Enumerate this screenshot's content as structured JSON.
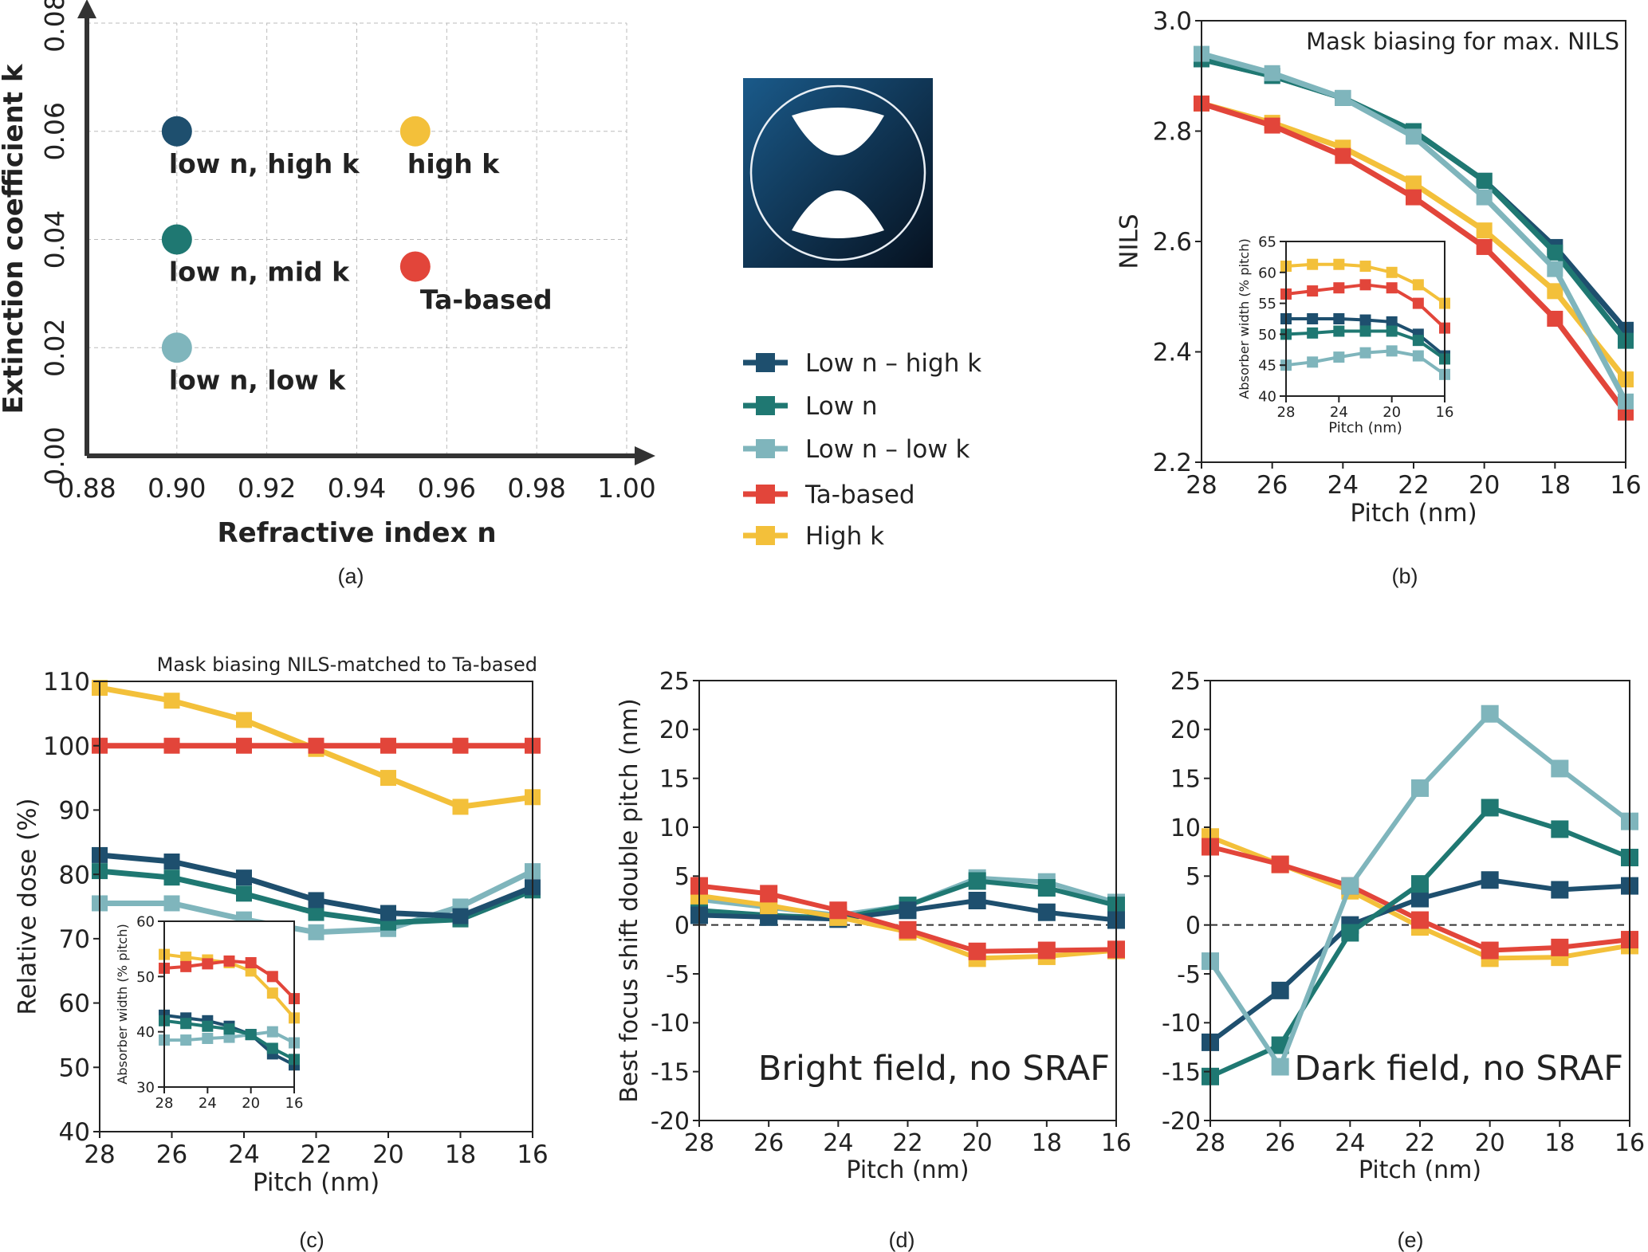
{
  "colors": {
    "low_n_high_k": "#1e4f6e",
    "low_n": "#1f7872",
    "low_n_low_k": "#7fb5bc",
    "ta_based": "#e2453a",
    "high_k": "#f3c03a"
  },
  "legend": [
    {
      "key": "low_n_high_k",
      "label": "Low n – high k"
    },
    {
      "key": "low_n",
      "label": "Low n"
    },
    {
      "key": "low_n_low_k",
      "label": "Low n – low k"
    },
    {
      "key": "ta_based",
      "label": "Ta-based"
    },
    {
      "key": "high_k",
      "label": "High k"
    }
  ],
  "mask_icon": "mask-pattern-two-lens-openings",
  "chart_data": [
    {
      "id": "a",
      "panel_label": "(a)",
      "type": "scatter",
      "xlabel": "Refractive index n",
      "ylabel": "Extinction coefficient k",
      "xlim": [
        0.88,
        1.0
      ],
      "ylim": [
        0,
        0.08
      ],
      "xticks": [
        "0.88",
        "0.90",
        "0.92",
        "0.94",
        "0.96",
        "0.98",
        "1.00"
      ],
      "yticks": [
        "0.00",
        "0.02",
        "0.04",
        "0.06",
        "0.08"
      ],
      "grid": true,
      "points": [
        {
          "key": "low_n_high_k",
          "label": "low n, high k",
          "x": 0.9,
          "y": 0.06
        },
        {
          "key": "high_k",
          "label": "high k",
          "x": 0.953,
          "y": 0.06
        },
        {
          "key": "low_n",
          "label": "low n, mid k",
          "x": 0.9,
          "y": 0.04
        },
        {
          "key": "ta_based",
          "label": "Ta-based",
          "x": 0.953,
          "y": 0.035
        },
        {
          "key": "low_n_low_k",
          "label": "low n, low k",
          "x": 0.9,
          "y": 0.02
        }
      ]
    },
    {
      "id": "b",
      "panel_label": "(b)",
      "type": "line",
      "title": "Mask biasing for max. NILS",
      "xlabel": "Pitch (nm)",
      "ylabel": "NILS",
      "x": [
        28,
        26,
        24,
        22,
        20,
        18,
        16
      ],
      "xlim": [
        28,
        16
      ],
      "ylim": [
        2.2,
        3.0
      ],
      "yticks": [
        "2.2",
        "2.4",
        "2.6",
        "2.8",
        "3.0"
      ],
      "xticks": [
        "28",
        "26",
        "24",
        "22",
        "20",
        "18",
        "16"
      ],
      "series": [
        {
          "key": "high_k",
          "values": [
            2.85,
            2.815,
            2.77,
            2.705,
            2.62,
            2.51,
            2.35
          ]
        },
        {
          "key": "ta_based",
          "values": [
            2.85,
            2.81,
            2.755,
            2.68,
            2.59,
            2.46,
            2.29
          ]
        },
        {
          "key": "low_n_high_k",
          "values": [
            2.93,
            2.9,
            2.86,
            2.8,
            2.71,
            2.59,
            2.44
          ]
        },
        {
          "key": "low_n",
          "values": [
            2.93,
            2.9,
            2.86,
            2.8,
            2.71,
            2.58,
            2.42
          ]
        },
        {
          "key": "low_n_low_k",
          "values": [
            2.94,
            2.905,
            2.86,
            2.79,
            2.68,
            2.55,
            2.31
          ]
        }
      ],
      "inset": {
        "xlabel": "Pitch (nm)",
        "ylabel": "Absorber width (% pitch)",
        "x": [
          28,
          26,
          24,
          22,
          20,
          18,
          16
        ],
        "xlim": [
          28,
          16
        ],
        "ylim": [
          40,
          65
        ],
        "yticks": [
          "40",
          "45",
          "50",
          "55",
          "60",
          "65"
        ],
        "xticks": [
          "28",
          "24",
          "20",
          "16"
        ],
        "series": [
          {
            "key": "high_k",
            "values": [
              61,
              61.3,
              61.3,
              61,
              60,
              58,
              55
            ]
          },
          {
            "key": "ta_based",
            "values": [
              56.5,
              57,
              57.5,
              58,
              57.5,
              55,
              51
            ]
          },
          {
            "key": "low_n_high_k",
            "values": [
              52.5,
              52.5,
              52.5,
              52.3,
              52,
              50,
              46.5
            ]
          },
          {
            "key": "low_n",
            "values": [
              50,
              50.2,
              50.5,
              50.5,
              50.5,
              49,
              46
            ]
          },
          {
            "key": "low_n_low_k",
            "values": [
              45,
              45.5,
              46.3,
              47,
              47.3,
              46.5,
              43.5
            ]
          }
        ]
      }
    },
    {
      "id": "c",
      "panel_label": "(c)",
      "type": "line",
      "title": "Mask biasing NILS-matched to Ta-based",
      "xlabel": "Pitch (nm)",
      "ylabel": "Relative dose (%)",
      "x": [
        28,
        26,
        24,
        22,
        20,
        18,
        16
      ],
      "xlim": [
        28,
        16
      ],
      "ylim": [
        40,
        110
      ],
      "yticks": [
        "40",
        "50",
        "60",
        "70",
        "80",
        "90",
        "100",
        "110"
      ],
      "xticks": [
        "28",
        "26",
        "24",
        "22",
        "20",
        "18",
        "16"
      ],
      "series": [
        {
          "key": "low_n_low_k",
          "values": [
            75.5,
            75.5,
            73,
            71,
            71.5,
            75,
            80.5
          ]
        },
        {
          "key": "low_n",
          "values": [
            80.5,
            79.5,
            77,
            74,
            72.5,
            73,
            77.5
          ]
        },
        {
          "key": "low_n_high_k",
          "values": [
            83,
            82,
            79.5,
            76,
            74,
            73.5,
            78
          ]
        },
        {
          "key": "high_k",
          "values": [
            109,
            107,
            104,
            99.5,
            95,
            90.5,
            92
          ]
        },
        {
          "key": "ta_based",
          "values": [
            100,
            100,
            100,
            100,
            100,
            100,
            100
          ]
        }
      ],
      "inset": {
        "xlabel": "",
        "ylabel": "Absorber width (% pitch)",
        "x": [
          28,
          26,
          24,
          22,
          20,
          18,
          16
        ],
        "xlim": [
          28,
          16
        ],
        "ylim": [
          30,
          60
        ],
        "yticks": [
          "30",
          "40",
          "50",
          "60"
        ],
        "xticks": [
          "28",
          "24",
          "20",
          "16"
        ],
        "series": [
          {
            "key": "high_k",
            "values": [
              54,
              53.5,
              53,
              52.5,
              51,
              47,
              42.5
            ]
          },
          {
            "key": "ta_based",
            "values": [
              51.5,
              51.8,
              52.3,
              52.8,
              52.5,
              50,
              46
            ]
          },
          {
            "key": "low_n_low_k",
            "values": [
              38.5,
              38.5,
              38.8,
              39,
              39.5,
              40,
              38
            ]
          },
          {
            "key": "low_n_high_k",
            "values": [
              43,
              42.5,
              42,
              41,
              39.5,
              36,
              34
            ]
          },
          {
            "key": "low_n",
            "values": [
              42,
              41.5,
              41,
              40.5,
              39.5,
              37,
              35
            ]
          }
        ]
      }
    },
    {
      "id": "d",
      "panel_label": "(d)",
      "type": "line",
      "annotation": "Bright field, no SRAF",
      "xlabel": "Pitch (nm)",
      "ylabel": "Best focus shift double pitch (nm)",
      "x": [
        28,
        26,
        24,
        22,
        20,
        18,
        16
      ],
      "xlim": [
        28,
        16
      ],
      "ylim": [
        -20,
        25
      ],
      "yticks": [
        "-20",
        "-15",
        "-10",
        "-5",
        "0",
        "5",
        "10",
        "15",
        "20",
        "25"
      ],
      "xticks": [
        "28",
        "26",
        "24",
        "22",
        "20",
        "18",
        "16"
      ],
      "zero_line": "dashed",
      "series": [
        {
          "key": "low_n_low_k",
          "values": [
            2.6,
            1.8,
            1,
            2,
            4.8,
            4.4,
            2.3
          ]
        },
        {
          "key": "low_n",
          "values": [
            1.5,
            1,
            0.7,
            2,
            4.5,
            3.8,
            2
          ]
        },
        {
          "key": "low_n_high_k",
          "values": [
            1,
            0.8,
            0.6,
            1.5,
            2.5,
            1.3,
            0.5
          ]
        },
        {
          "key": "high_k",
          "values": [
            3,
            2,
            0.8,
            -0.7,
            -3.4,
            -3.2,
            -2.6
          ]
        },
        {
          "key": "ta_based",
          "values": [
            4,
            3.2,
            1.5,
            -0.5,
            -2.7,
            -2.6,
            -2.5
          ]
        }
      ]
    },
    {
      "id": "e",
      "panel_label": "(e)",
      "type": "line",
      "annotation": "Dark field, no SRAF",
      "xlabel": "Pitch (nm)",
      "ylabel": "",
      "x": [
        28,
        26,
        24,
        22,
        20,
        18,
        16
      ],
      "xlim": [
        28,
        16
      ],
      "ylim": [
        -20,
        25
      ],
      "yticks": [
        "-20",
        "-15",
        "-10",
        "-5",
        "0",
        "5",
        "10",
        "15",
        "20",
        "25"
      ],
      "xticks": [
        "28",
        "26",
        "24",
        "22",
        "20",
        "18",
        "16"
      ],
      "zero_line": "dashed",
      "series": [
        {
          "key": "high_k",
          "values": [
            9,
            6.2,
            3.5,
            -0.2,
            -3.4,
            -3.3,
            -2.1
          ]
        },
        {
          "key": "ta_based",
          "values": [
            8,
            6.2,
            4,
            0.5,
            -2.6,
            -2.3,
            -1.5
          ]
        },
        {
          "key": "low_n_high_k",
          "values": [
            -12,
            -6.7,
            0,
            2.7,
            4.6,
            3.6,
            4
          ]
        },
        {
          "key": "low_n",
          "values": [
            -15.5,
            -12.3,
            -0.8,
            4.2,
            12,
            9.8,
            6.9
          ]
        },
        {
          "key": "low_n_low_k",
          "values": [
            -3.7,
            -14.5,
            4,
            14,
            21.6,
            16,
            10.6
          ]
        }
      ]
    }
  ]
}
